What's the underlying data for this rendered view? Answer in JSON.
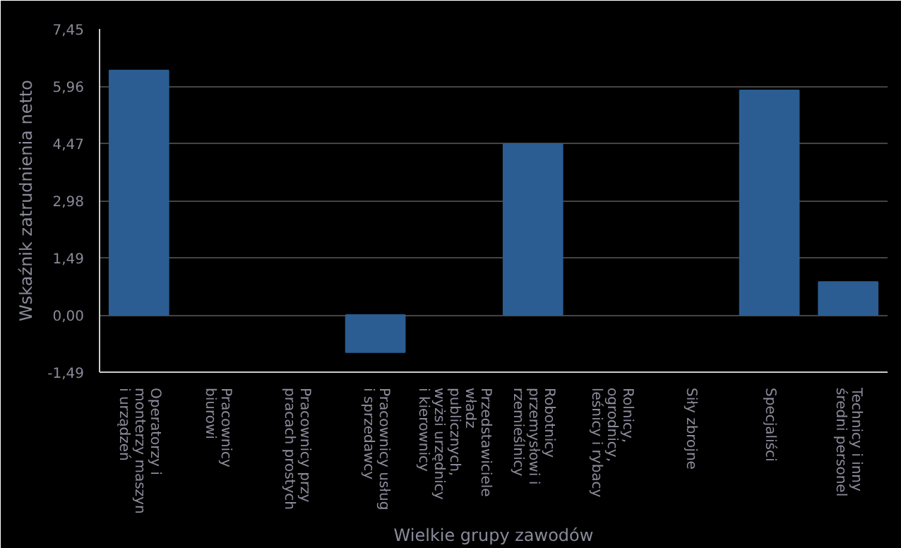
{
  "chart_data": {
    "type": "bar",
    "xlabel": "Wielkie grupy zawodów",
    "ylabel": "Wskaźnik zatrudnienia netto",
    "categories": [
      "Operatorzy i monterzy maszyn i urządzeń",
      "Pracownicy biurowi",
      "Pracownicy przy pracach prostych",
      "Pracownicy usług i sprzedawcy",
      "Przedstawiciele władz publicznych, wyżsi urzędnicy i kierownicy",
      "Robotnicy przemysłowi i rzemieślnicy",
      "Rolnicy, ogrodnicy, leśnicy i rybacy",
      "Siły zbrojne",
      "Specjaliści",
      "Technicy i inny średni personel"
    ],
    "values": [
      6.37,
      null,
      null,
      -0.97,
      null,
      4.45,
      null,
      null,
      5.85,
      0.86
    ],
    "color": "#2b5d92",
    "ylim": [
      -1.49,
      7.45
    ],
    "yticks": [
      {
        "value": -1.49,
        "label": "-1,49"
      },
      {
        "value": 0,
        "label": "0,00"
      },
      {
        "value": 1.49,
        "label": "1,49"
      },
      {
        "value": 2.98,
        "label": "2,98"
      },
      {
        "value": 4.47,
        "label": "4,47"
      },
      {
        "value": 5.96,
        "label": "5,96"
      },
      {
        "value": 7.45,
        "label": "7,45"
      }
    ],
    "grid": "y"
  }
}
